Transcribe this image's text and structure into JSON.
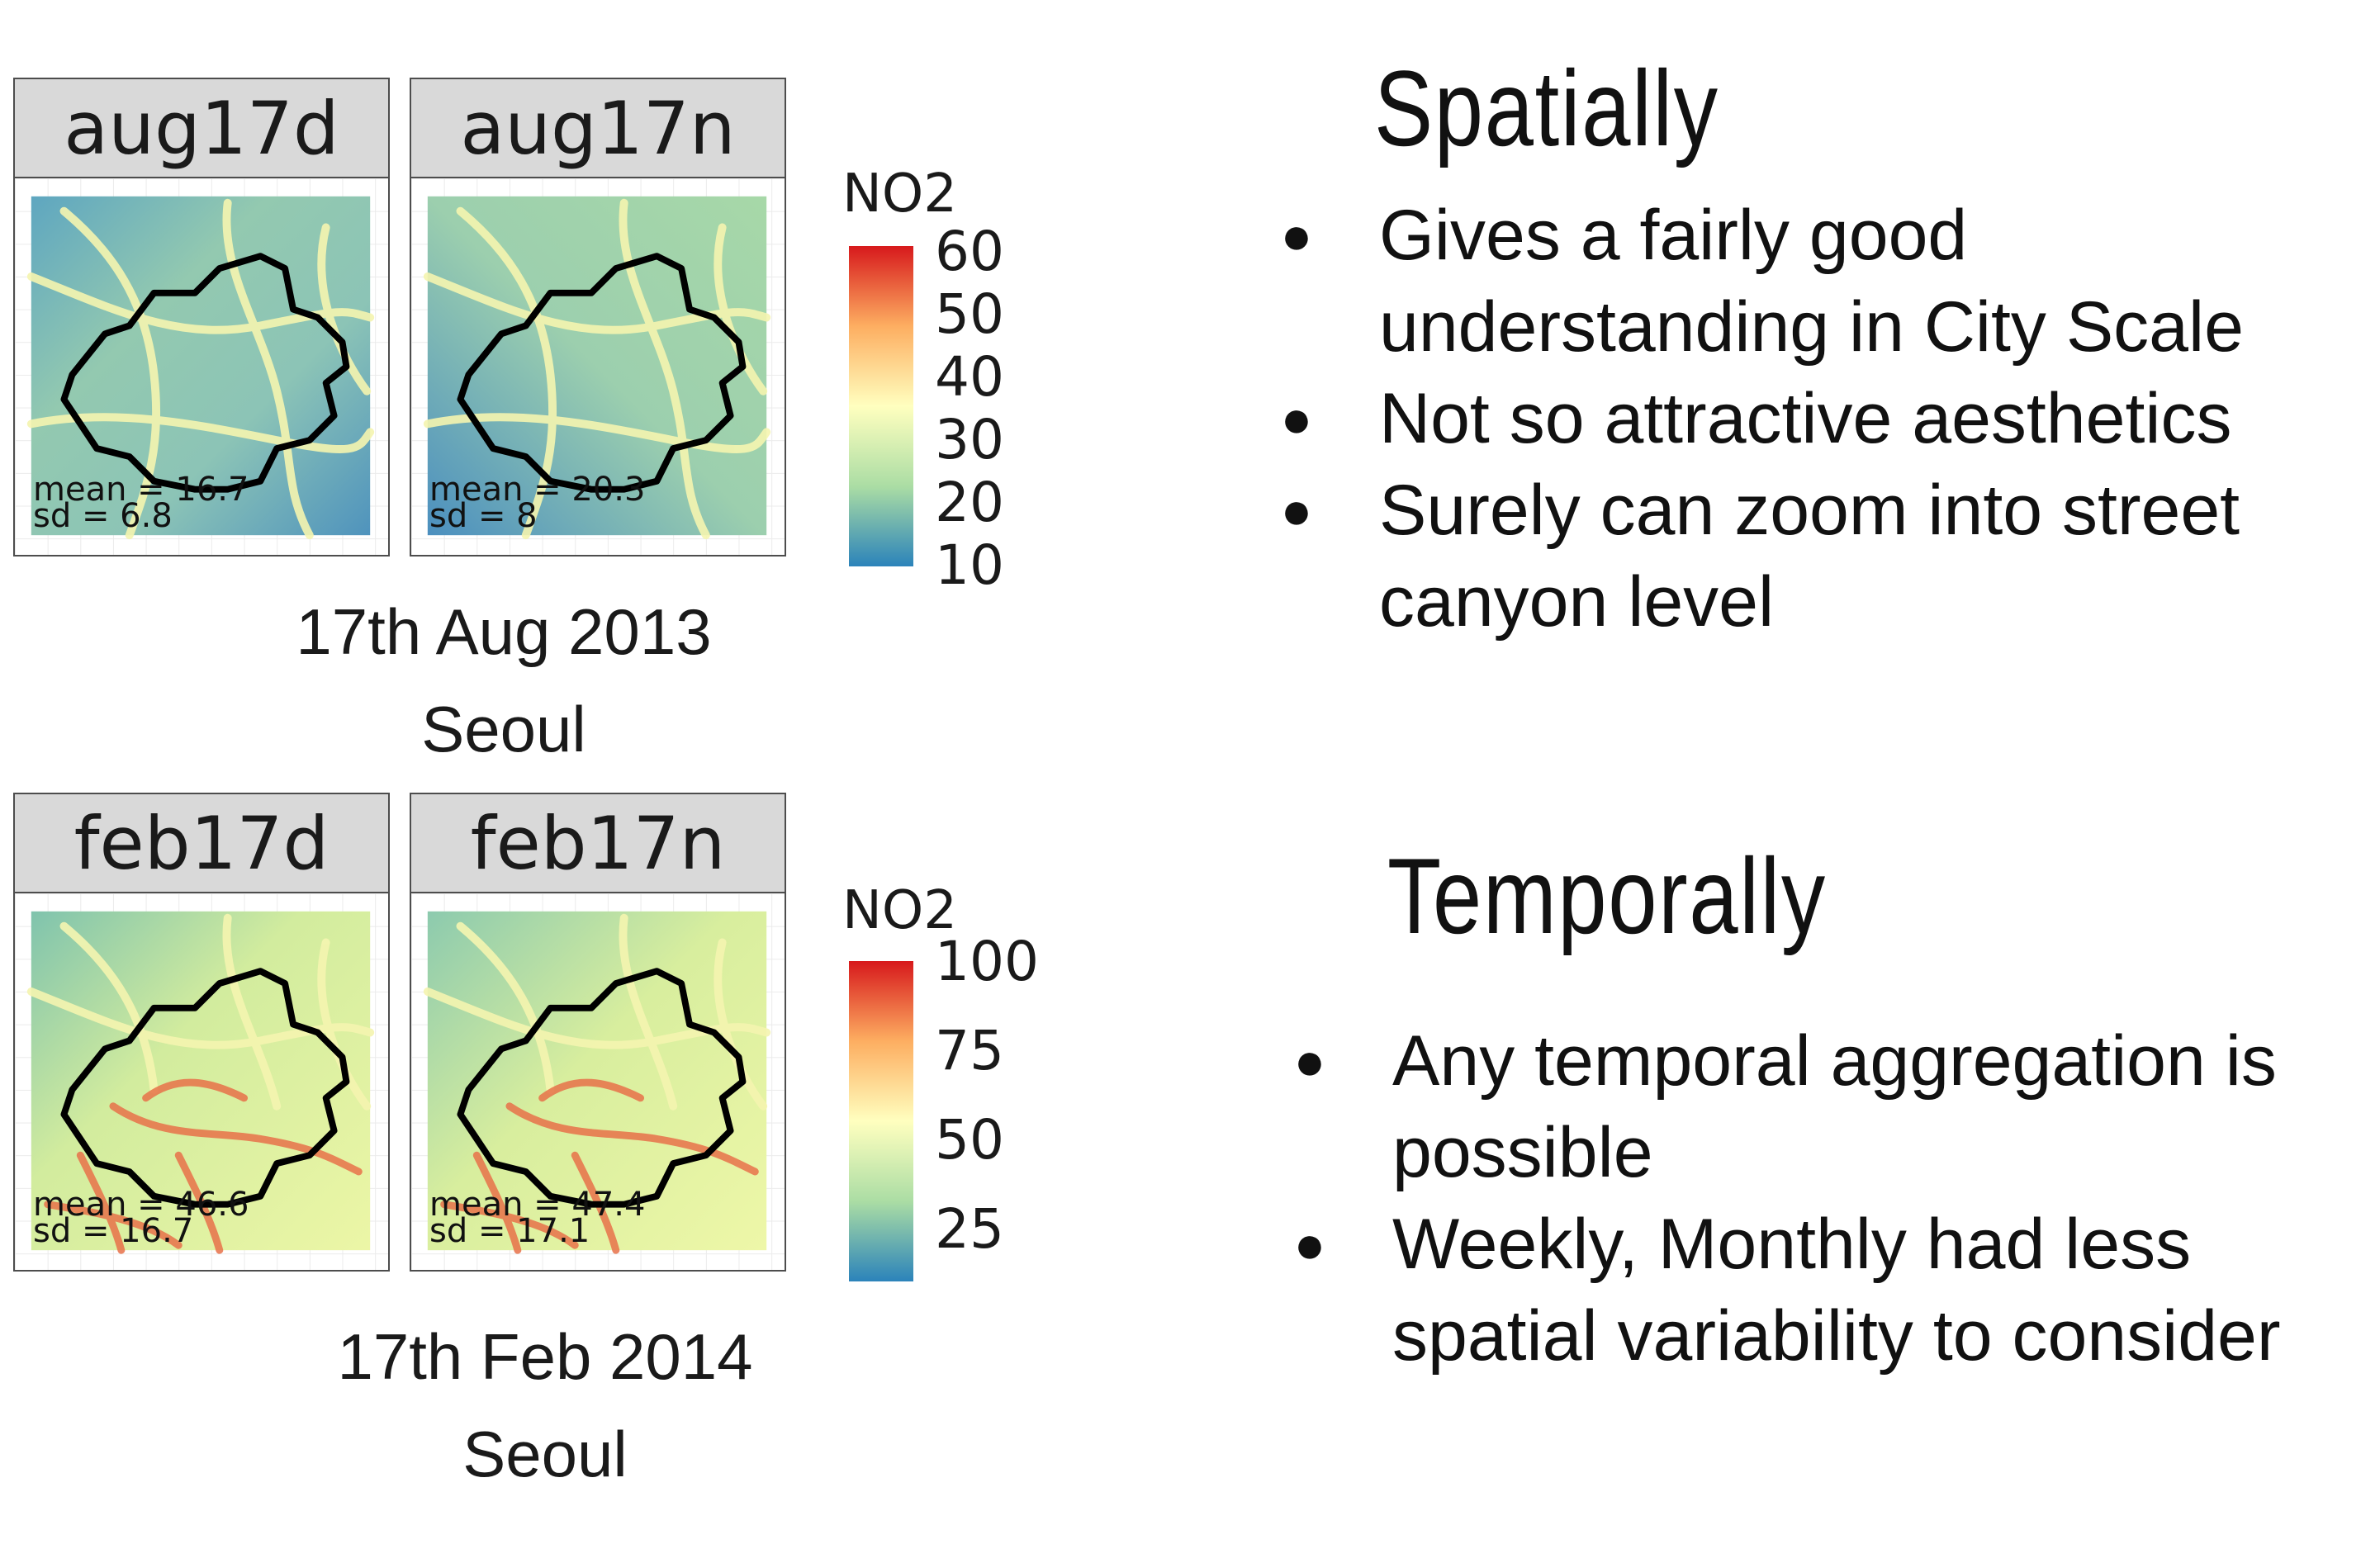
{
  "top": {
    "panels": [
      {
        "label": "aug17d",
        "mean": "mean = 16.7",
        "sd": "sd = 6.8"
      },
      {
        "label": "aug17n",
        "mean": "mean = 20.3",
        "sd": "sd = 8"
      }
    ],
    "legend": {
      "title": "NO2",
      "ticks": [
        "60",
        "50",
        "40",
        "30",
        "20",
        "10"
      ]
    },
    "caption_date": "17th Aug 2013",
    "caption_city": "Seoul"
  },
  "bottom": {
    "panels": [
      {
        "label": "feb17d",
        "mean": "mean = 46.6",
        "sd": "sd = 16.7"
      },
      {
        "label": "feb17n",
        "mean": "mean = 47.4",
        "sd": "sd = 17.1"
      }
    ],
    "legend": {
      "title": "NO2",
      "ticks": [
        "100",
        "75",
        "50",
        "25"
      ]
    },
    "caption_date": "17th Feb 2014",
    "caption_city": "Seoul"
  },
  "spatially": {
    "heading": "Spatially",
    "bullets": [
      "Gives a fairly good understanding in City Scale",
      "Not so attractive aesthetics",
      "Surely can zoom into street canyon level"
    ]
  },
  "temporally": {
    "heading": "Temporally",
    "bullets": [
      "Any temporal aggregation is possible",
      "Weekly, Monthly had less spatial variability to consider"
    ]
  },
  "bullet_symbol": "●",
  "colors": {
    "scale_red": "#d7191c",
    "scale_orange": "#fdae61",
    "scale_yellow": "#ffffbf",
    "scale_green": "#abdda4",
    "scale_blue": "#2b83ba",
    "boundary": "#000000",
    "roads": "#f5f5b0"
  }
}
